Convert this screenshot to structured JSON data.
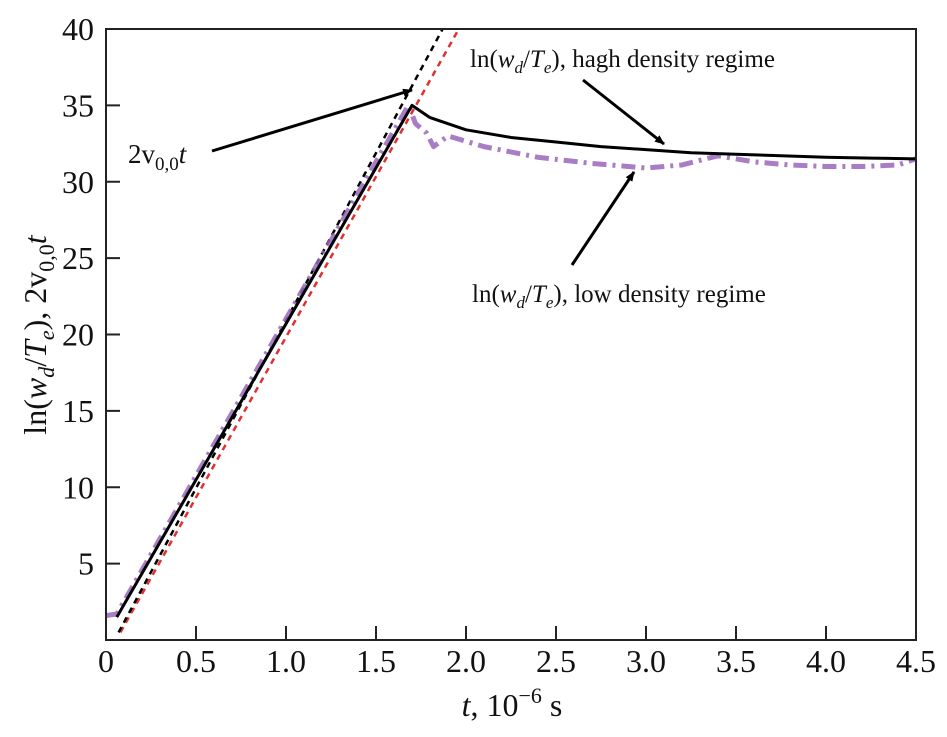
{
  "chart_data": {
    "type": "line",
    "title": "",
    "xlabel": "t, 10^-6 s",
    "xlabel_parts": {
      "var": "t",
      "rest": ", 10",
      "exp": "−6",
      "unit": " s"
    },
    "ylabel": "ln(w_d/T_e), 2v_{0,0}t",
    "ylabel_parts": {
      "a": "ln(",
      "w": "w",
      "d": "d",
      "slash": "/",
      "T": "T",
      "e": "e",
      "b": "), 2v",
      "sub": "0,0",
      "t": "t"
    },
    "xlim": [
      0,
      4.5
    ],
    "ylim": [
      0,
      40
    ],
    "xticks": [
      0,
      0.5,
      1.0,
      1.5,
      2.0,
      2.5,
      3.0,
      3.5,
      4.0,
      4.5
    ],
    "xtick_labels": [
      "0",
      "0.5",
      "1.0",
      "1.5",
      "2.0",
      "2.5",
      "3.0",
      "3.5",
      "4.0",
      "4.5"
    ],
    "yticks": [
      5,
      10,
      15,
      20,
      25,
      30,
      35,
      40
    ],
    "ytick_labels": [
      "5",
      "10",
      "15",
      "20",
      "25",
      "30",
      "35",
      "40"
    ],
    "grid": false,
    "series": [
      {
        "name": "ln(w_d/T_e), high density regime",
        "color": "#000000",
        "style": "solid",
        "x": [
          0.06,
          1.7,
          1.8,
          2.0,
          2.25,
          2.5,
          2.75,
          3.0,
          3.25,
          3.5,
          3.75,
          4.0,
          4.25,
          4.5
        ],
        "y": [
          1.5,
          35.0,
          34.2,
          33.4,
          32.9,
          32.6,
          32.3,
          32.1,
          31.9,
          31.8,
          31.7,
          31.6,
          31.55,
          31.5
        ]
      },
      {
        "name": "ln(w_d/T_e), low density regime",
        "color": "#9966bb",
        "style": "dashdot",
        "x": [
          0.0,
          0.06,
          1.68,
          1.72,
          1.78,
          1.82,
          1.9,
          2.1,
          2.4,
          2.7,
          3.0,
          3.2,
          3.4,
          3.6,
          3.8,
          4.0,
          4.2,
          4.4,
          4.5
        ],
        "y": [
          1.6,
          1.7,
          35.0,
          33.8,
          33.2,
          32.3,
          33.0,
          32.3,
          31.6,
          31.2,
          30.9,
          31.1,
          31.7,
          31.3,
          31.1,
          31.0,
          31.0,
          31.1,
          31.5
        ]
      },
      {
        "name": "2v_{0,0}t",
        "color": "#000000",
        "style": "dashed",
        "x": [
          0.07,
          1.87
        ],
        "y": [
          0.5,
          40
        ]
      },
      {
        "name": "2v_{0,0}t (fit)",
        "color": "#e03030",
        "style": "dashed",
        "x": [
          0.08,
          1.96
        ],
        "y": [
          0.5,
          40
        ]
      }
    ],
    "annotations": [
      {
        "label": "ln(w_d/T_e), hagh density regime",
        "parts": {
          "a": "ln(",
          "w": "w",
          "d": "d",
          "s": "/",
          "T": "T",
          "e": "e",
          "b": "), hagh density regime"
        }
      },
      {
        "label": "ln(w_d/T_e), low density regime",
        "parts": {
          "a": "ln(",
          "w": "w",
          "d": "d",
          "s": "/",
          "T": "T",
          "e": "e",
          "b": "), low density regime"
        }
      },
      {
        "label": "2v_{0,0}t",
        "parts": {
          "a": "2v",
          "sub": "0,0",
          "t": "t"
        }
      }
    ]
  }
}
